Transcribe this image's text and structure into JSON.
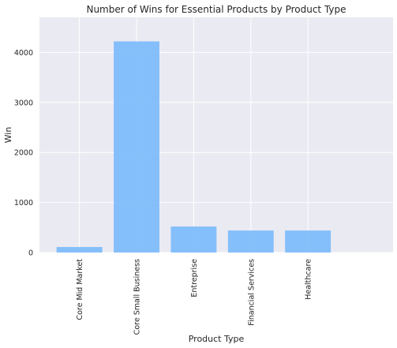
{
  "chart_data": {
    "type": "bar",
    "title": "Number of Wins for Essential Products by Product Type",
    "xlabel": "Product Type",
    "ylabel": "Win",
    "categories": [
      "Core Mid Market",
      "Core Small Business",
      "Entreprise",
      "Financial Services",
      "Healthcare"
    ],
    "values": [
      110,
      4220,
      520,
      440,
      440
    ],
    "yticks": [
      0,
      1000,
      2000,
      3000,
      4000
    ],
    "ylim": [
      0,
      4700
    ],
    "grid": true,
    "colors": {
      "background": "#eaeaf2",
      "bar": "#80bdfb",
      "grid": "#ffffff"
    }
  }
}
